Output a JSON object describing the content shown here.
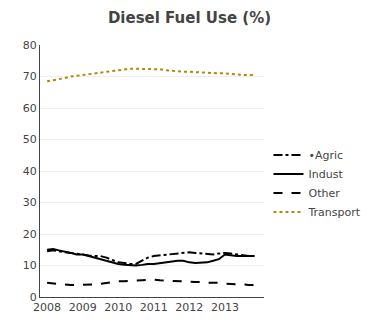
{
  "chart_data": {
    "type": "line",
    "title": "Diesel Fuel Use (%)",
    "x": [
      2008.0,
      2008.17,
      2008.33,
      2008.5,
      2008.67,
      2008.83,
      2009.0,
      2009.17,
      2009.33,
      2009.5,
      2009.67,
      2009.83,
      2010.0,
      2010.17,
      2010.33,
      2010.5,
      2010.67,
      2010.83,
      2011.0,
      2011.17,
      2011.33,
      2011.5,
      2011.67,
      2011.83,
      2012.0,
      2012.17,
      2012.33,
      2012.5,
      2012.67,
      2012.83,
      2013.0,
      2013.17,
      2013.33,
      2013.5,
      2013.67,
      2013.83
    ],
    "xlim": [
      2007.8,
      2014.1
    ],
    "xticks": [
      2008,
      2009,
      2010,
      2011,
      2012,
      2013
    ],
    "ylim": [
      0,
      80
    ],
    "yticks": [
      0,
      10,
      20,
      30,
      40,
      50,
      60,
      70,
      80
    ],
    "grid": "y",
    "legend": "right",
    "series": [
      {
        "name": "•Agric",
        "color": "#000000",
        "line_style": "dashdot",
        "values": [
          14.5,
          14.8,
          14.5,
          14.2,
          14.0,
          13.8,
          13.5,
          13.2,
          13.0,
          13.0,
          12.5,
          11.8,
          11.0,
          10.8,
          10.5,
          10.5,
          11.5,
          12.5,
          13.0,
          13.2,
          13.5,
          13.8,
          13.8,
          14.0,
          14.2,
          14.0,
          13.8,
          13.5,
          13.5,
          13.8,
          14.0,
          13.8,
          13.5,
          13.2,
          13.0,
          13.0
        ]
      },
      {
        "name": "Indust",
        "color": "#000000",
        "line_style": "solid",
        "values": [
          15.0,
          15.2,
          14.8,
          14.5,
          14.0,
          13.5,
          13.5,
          13.0,
          12.5,
          12.0,
          11.5,
          11.0,
          10.5,
          10.2,
          10.0,
          10.0,
          10.2,
          10.5,
          10.5,
          10.8,
          11.0,
          11.2,
          11.5,
          11.5,
          11.0,
          10.8,
          10.8,
          11.0,
          11.5,
          12.0,
          13.5,
          13.2,
          13.0,
          13.0,
          13.0,
          13.0
        ]
      },
      {
        "name": "Other",
        "color": "#000000",
        "line_style": "dash",
        "values": [
          4.5,
          4.3,
          4.2,
          4.0,
          3.8,
          3.8,
          3.8,
          4.0,
          4.0,
          4.2,
          4.5,
          4.8,
          5.0,
          5.0,
          5.2,
          5.2,
          5.3,
          5.5,
          5.5,
          5.3,
          5.2,
          5.0,
          5.0,
          4.8,
          4.8,
          4.8,
          4.8,
          4.5,
          4.5,
          4.5,
          4.2,
          4.2,
          4.0,
          4.0,
          3.8,
          3.8
        ]
      },
      {
        "name": "Transport",
        "color": "#b8860b",
        "line_style": "dot",
        "values": [
          68.5,
          68.8,
          69.0,
          69.5,
          70.0,
          70.2,
          70.5,
          70.8,
          71.0,
          71.2,
          71.5,
          71.8,
          72.0,
          72.2,
          72.5,
          72.5,
          72.5,
          72.5,
          72.5,
          72.3,
          72.0,
          71.8,
          71.8,
          71.5,
          71.5,
          71.5,
          71.3,
          71.2,
          71.0,
          71.0,
          71.0,
          70.8,
          70.8,
          70.5,
          70.5,
          70.5
        ]
      }
    ]
  }
}
